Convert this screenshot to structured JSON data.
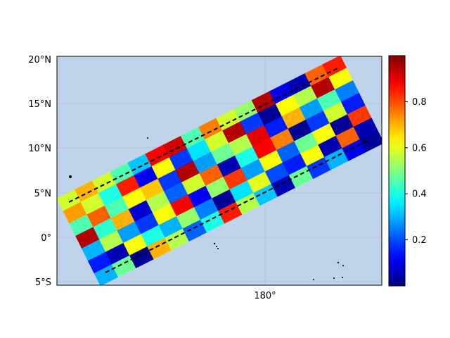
{
  "map": {
    "lat_ticks": [
      "20°N",
      "15°N",
      "10°N",
      "5°N",
      "0°",
      "5°S"
    ],
    "lon_ticks": [
      "180°"
    ],
    "colors": {
      "ocean": "#bfd3ea",
      "grid": "#a9b9cf",
      "land": "#000000",
      "swath_edge": "#000000"
    }
  },
  "colorbar": {
    "colormap": "jet",
    "range": [
      0.0,
      1.0
    ],
    "ticks": [
      "0.2",
      "0.4",
      "0.6",
      "0.8"
    ]
  },
  "swath": {
    "value_rows": [
      [
        0.58,
        0.7,
        0.58,
        0.45,
        0.32,
        0.88,
        0.92,
        0.45,
        0.75,
        0.58,
        0.52,
        0.95,
        0.1,
        0.05,
        0.78,
        0.85
      ],
      [
        0.72,
        0.58,
        0.4,
        0.85,
        0.12,
        0.62,
        0.18,
        0.35,
        0.58,
        0.95,
        0.18,
        0.02,
        0.62,
        0.55,
        0.95,
        0.62
      ],
      [
        0.45,
        0.78,
        0.45,
        0.62,
        0.68,
        0.18,
        0.95,
        0.28,
        0.48,
        0.55,
        0.9,
        0.15,
        0.7,
        0.28,
        0.45,
        0.25
      ],
      [
        0.95,
        0.42,
        0.7,
        0.08,
        0.55,
        0.22,
        0.58,
        0.78,
        0.05,
        0.4,
        0.88,
        0.75,
        0.02,
        0.18,
        0.58,
        0.15
      ],
      [
        0.3,
        0.55,
        0.28,
        0.18,
        0.62,
        0.88,
        0.12,
        0.52,
        0.82,
        0.28,
        0.62,
        0.22,
        0.48,
        0.62,
        0.02,
        0.82
      ],
      [
        0.15,
        0.05,
        0.62,
        0.4,
        0.3,
        0.52,
        0.25,
        0.02,
        0.35,
        0.6,
        0.2,
        0.15,
        0.62,
        0.05,
        0.78,
        0.05
      ],
      [
        0.3,
        0.48,
        0.02,
        0.7,
        0.55,
        0.22,
        0.4,
        0.85,
        0.55,
        0.32,
        0.05,
        0.48,
        0.18,
        0.3,
        0.1,
        0.02
      ]
    ]
  }
}
